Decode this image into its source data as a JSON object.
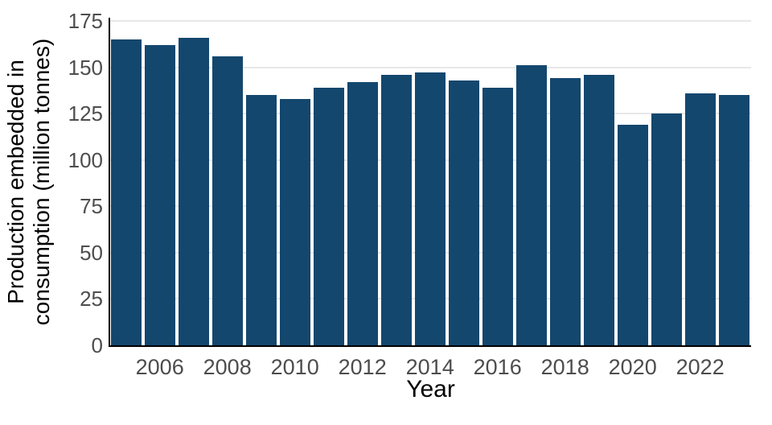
{
  "chart_data": {
    "type": "bar",
    "x": [
      2005,
      2006,
      2007,
      2008,
      2009,
      2010,
      2011,
      2012,
      2013,
      2014,
      2015,
      2016,
      2017,
      2018,
      2019,
      2020,
      2021,
      2022,
      2023
    ],
    "values": [
      165,
      162,
      166,
      156,
      135,
      133,
      139,
      142,
      146,
      147,
      143,
      139,
      151,
      144,
      146,
      119,
      125,
      136,
      135
    ],
    "series_name": "Production embedded in consumption",
    "title": "",
    "xlabel": "Year",
    "ylabel_line1": "Production embedded in",
    "ylabel_line2": "consumption (million tonnes)",
    "ylim": [
      0,
      175
    ],
    "yticks": [
      0,
      25,
      50,
      75,
      100,
      125,
      150,
      175
    ],
    "xticks": [
      2006,
      2008,
      2010,
      2012,
      2014,
      2016,
      2018,
      2020,
      2022
    ],
    "grid": true,
    "legend_position": "none",
    "bar_color": "#14476e",
    "grid_color": "#e8e8e8",
    "tick_label_color": "#4d4d4d",
    "axis_title_color": "#000000",
    "spine_color": "#000000",
    "background_color": "#ffffff"
  }
}
